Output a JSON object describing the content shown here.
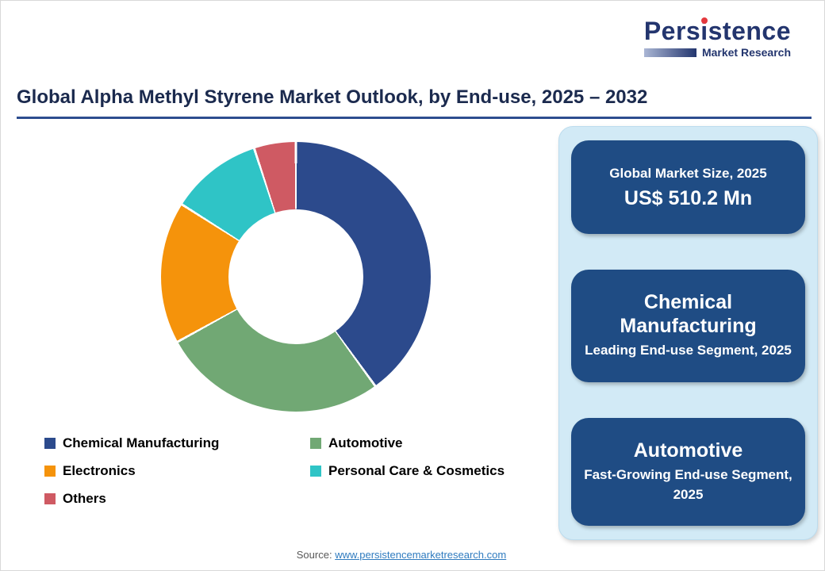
{
  "page": {
    "title": "Global Alpha Methyl Styrene Market Outlook, by End-use, 2025 – 2032",
    "source_label": "Source: ",
    "source_link": "www.persistencemarketresearch.com"
  },
  "logo": {
    "part1": "Pers",
    "i_letter": "i",
    "part2": "stence",
    "subtitle": "Market Research",
    "brand_navy": "#23356e",
    "accent_red": "#e4393e"
  },
  "chart_data": {
    "type": "pie",
    "subtype": "donut",
    "title": "Global Alpha Methyl Styrene Market Outlook, by End-use, 2025 – 2032",
    "categories": [
      "Chemical Manufacturing",
      "Automotive",
      "Electronics",
      "Personal Care & Cosmetics",
      "Others"
    ],
    "values": [
      40,
      27,
      17,
      11,
      5
    ],
    "unit": "% share (estimated from arc angles)",
    "colors": [
      "#2c4a8c",
      "#71a874",
      "#f5930b",
      "#2fc4c6",
      "#cf5a63"
    ],
    "legend_position": "bottom-left",
    "start_angle_deg": 0,
    "direction": "clockwise",
    "hole_ratio": 0.5
  },
  "sidebar": {
    "panel_color": "#d2eaf6",
    "card_color": "#1f4c84",
    "cards": [
      {
        "line1": "Global Market Size, 2025",
        "line2": "US$ 510.2 Mn"
      },
      {
        "line1": "Chemical Manufacturing",
        "line2": "Leading End-use Segment, 2025"
      },
      {
        "line1": "Automotive",
        "line2": "Fast-Growing End-use Segment, 2025"
      }
    ]
  }
}
